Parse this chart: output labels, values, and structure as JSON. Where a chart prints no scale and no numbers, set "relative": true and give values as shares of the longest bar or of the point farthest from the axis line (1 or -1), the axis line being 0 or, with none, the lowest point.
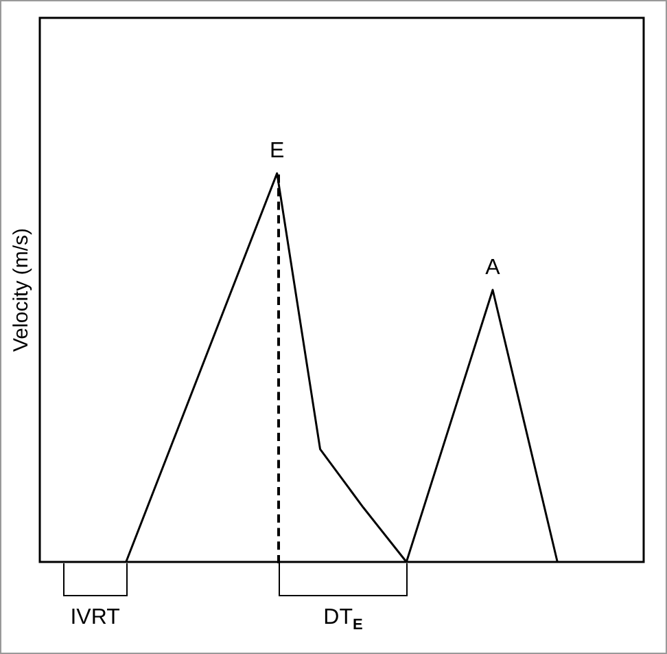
{
  "chart_data": {
    "type": "line",
    "ylabel": "Velocity (m/s)",
    "relative": true,
    "legend": false,
    "marker": "none",
    "line_style": "solid",
    "categories": [
      null,
      null,
      null,
      null,
      null,
      null,
      null,
      null,
      null,
      null,
      null,
      null,
      null,
      null,
      null,
      null,
      null,
      null,
      null,
      null,
      null,
      null,
      null,
      null,
      null,
      null,
      null,
      null,
      null
    ],
    "series": [
      {
        "color": "#000000",
        "values": [
          null,
          null,
          null,
          null,
          0,
          null,
          null,
          null,
          null,
          null,
          null,
          1,
          null,
          0.29,
          null,
          0.14,
          null,
          0,
          null,
          null,
          null,
          0.7,
          null,
          null,
          0,
          null,
          null,
          null,
          null
        ]
      }
    ],
    "annotations": [
      "E",
      "A",
      "IVRT",
      "DT$_{E}$"
    ]
  }
}
